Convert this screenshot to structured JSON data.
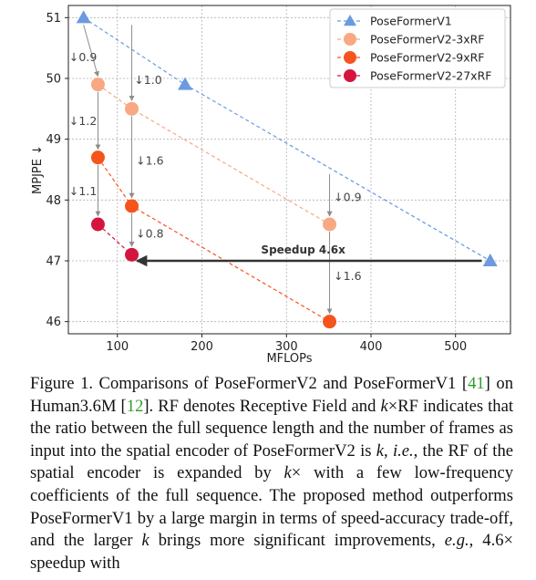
{
  "chart_data": {
    "type": "scatter",
    "xlabel": "MFLOPs",
    "ylabel": "MPJPE ↓",
    "xlim": [
      42,
      565
    ],
    "ylim": [
      45.8,
      51.2
    ],
    "xticks": [
      100,
      200,
      300,
      400,
      500
    ],
    "yticks": [
      46,
      47,
      48,
      49,
      50,
      51
    ],
    "grid": true,
    "legend_position": "top-right",
    "series": [
      {
        "name": "PoseFormerV1",
        "marker": "triangle",
        "color": "#6b9ae0",
        "points": [
          {
            "x": 60,
            "y": 51.0
          },
          {
            "x": 180,
            "y": 49.9
          },
          {
            "x": 541,
            "y": 47.0
          }
        ]
      },
      {
        "name": "PoseFormerV2-3xRF",
        "marker": "circle",
        "color": "#f8a883",
        "points": [
          {
            "x": 77,
            "y": 49.9
          },
          {
            "x": 117,
            "y": 49.5
          },
          {
            "x": 351,
            "y": 47.6
          }
        ]
      },
      {
        "name": "PoseFormerV2-9xRF",
        "marker": "circle",
        "color": "#f5541c",
        "points": [
          {
            "x": 77,
            "y": 48.7
          },
          {
            "x": 117,
            "y": 47.9
          },
          {
            "x": 351,
            "y": 46.0
          }
        ]
      },
      {
        "name": "PoseFormerV2-27xRF",
        "marker": "circle",
        "color": "#d4163f",
        "points": [
          {
            "x": 77,
            "y": 47.6
          },
          {
            "x": 117,
            "y": 47.1
          }
        ]
      }
    ],
    "annotations": [
      {
        "text": "↓0.9",
        "from": {
          "x": 60,
          "y": 51.0
        },
        "to": {
          "x": 77,
          "y": 49.9
        },
        "label_at": {
          "x": 43,
          "y": 50.35
        }
      },
      {
        "text": "↓1.0",
        "from": {
          "x": 117,
          "y": 51.0
        },
        "to": {
          "x": 117,
          "y": 49.5
        },
        "label_at": {
          "x": 120,
          "y": 49.98
        }
      },
      {
        "text": "↓1.2",
        "from": {
          "x": 77,
          "y": 49.9
        },
        "to": {
          "x": 77,
          "y": 48.7
        },
        "label_at": {
          "x": 43,
          "y": 49.3
        }
      },
      {
        "text": "↓1.6",
        "from": {
          "x": 117,
          "y": 49.5
        },
        "to": {
          "x": 117,
          "y": 47.9
        },
        "label_at": {
          "x": 122,
          "y": 48.65
        }
      },
      {
        "text": "↓1.1",
        "from": {
          "x": 77,
          "y": 48.7
        },
        "to": {
          "x": 77,
          "y": 47.6
        },
        "label_at": {
          "x": 43,
          "y": 48.15
        }
      },
      {
        "text": "↓0.8",
        "from": {
          "x": 117,
          "y": 47.9
        },
        "to": {
          "x": 117,
          "y": 47.1
        },
        "label_at": {
          "x": 122,
          "y": 47.45
        }
      },
      {
        "text": "↓0.9",
        "from": {
          "x": 351,
          "y": 48.55
        },
        "to": {
          "x": 351,
          "y": 47.6
        },
        "label_at": {
          "x": 356,
          "y": 48.05
        }
      },
      {
        "text": "↓1.6",
        "from": {
          "x": 351,
          "y": 47.6
        },
        "to": {
          "x": 351,
          "y": 46.0
        },
        "label_at": {
          "x": 356,
          "y": 46.75
        }
      }
    ],
    "speedup": {
      "text": "Speedup 4.6x",
      "from": {
        "x": 531,
        "y": 47.0
      },
      "to": {
        "x": 123,
        "y": 47.0
      },
      "label_at": {
        "x": 270,
        "y": 47.18
      }
    }
  },
  "caption": {
    "part1": "Figure 1. Comparisons of PoseFormerV2 and PoseFormerV1 [",
    "ref1": "41",
    "part2": "] on Human3.6M [",
    "ref2": "12",
    "part3": "]. RF denotes Receptive Field and ",
    "math1": "k",
    "part4": "×RF indicates that the ratio between the full sequence length and the number of frames as input into the spatial encoder of PoseFormerV2 is ",
    "math2": "k",
    "part5": ", ",
    "ie": "i.e.",
    "part6": ", the RF of the spatial encoder is expanded by ",
    "math3": "k",
    "part7": "× with a few low-frequency coefficients of the full sequence. The proposed method outperforms PoseFormerV1 by a large margin in terms of speed-accuracy trade-off, and the larger ",
    "math4": "k",
    "part8": " brings more significant improvements, ",
    "eg": "e.g.",
    "part9": ", 4.6× speedup with"
  }
}
